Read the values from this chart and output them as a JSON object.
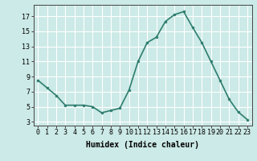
{
  "x": [
    0,
    1,
    2,
    3,
    4,
    5,
    6,
    7,
    8,
    9,
    10,
    11,
    12,
    13,
    14,
    15,
    16,
    17,
    18,
    19,
    20,
    21,
    22,
    23
  ],
  "y": [
    8.5,
    7.5,
    6.5,
    5.2,
    5.2,
    5.2,
    5.0,
    4.2,
    4.5,
    4.8,
    7.2,
    11.0,
    13.5,
    14.2,
    16.3,
    17.2,
    17.6,
    15.5,
    13.5,
    11.0,
    8.5,
    6.0,
    4.3,
    3.3
  ],
  "line_color": "#2e7d6e",
  "marker": "o",
  "marker_size": 2,
  "bg_color": "#cceae7",
  "grid_color": "#ffffff",
  "xlabel": "Humidex (Indice chaleur)",
  "ylabel": "",
  "xlim": [
    -0.5,
    23.5
  ],
  "ylim": [
    2.5,
    18.5
  ],
  "yticks": [
    3,
    5,
    7,
    9,
    11,
    13,
    15,
    17
  ],
  "xticks": [
    0,
    1,
    2,
    3,
    4,
    5,
    6,
    7,
    8,
    9,
    10,
    11,
    12,
    13,
    14,
    15,
    16,
    17,
    18,
    19,
    20,
    21,
    22,
    23
  ],
  "tick_fontsize": 6,
  "label_fontsize": 7,
  "line_width": 1.2
}
